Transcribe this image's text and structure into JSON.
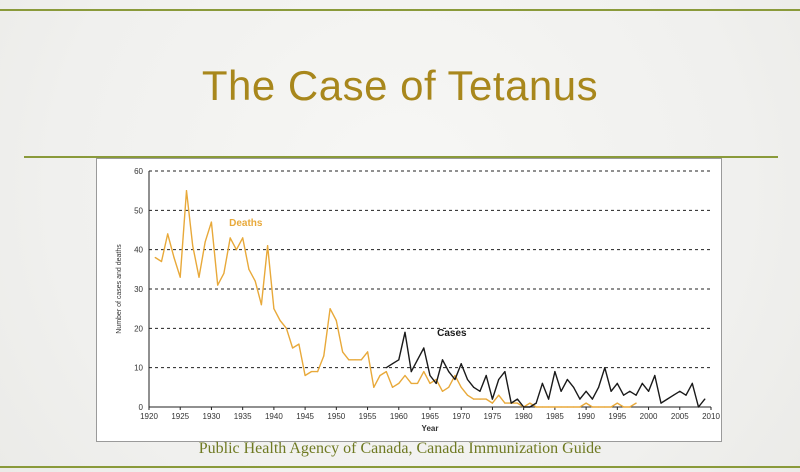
{
  "slide": {
    "title": "The Case of Tetanus",
    "caption": "Public Health Agency of Canada, Canada Immunization Guide"
  },
  "colors": {
    "deaths": "#e8a93a",
    "cases": "#1a1a1a",
    "title": "#a8871c",
    "rule": "#8a9a3a"
  },
  "chart_data": {
    "type": "line",
    "title": "",
    "xlabel": "Year",
    "ylabel": "Number of cases and deaths",
    "xlim": [
      1920,
      2010
    ],
    "ylim": [
      0,
      60
    ],
    "x_ticks": [
      1920,
      1925,
      1930,
      1935,
      1940,
      1945,
      1950,
      1955,
      1960,
      1965,
      1970,
      1975,
      1980,
      1985,
      1990,
      1995,
      2000,
      2005,
      2010
    ],
    "y_ticks": [
      0,
      10,
      20,
      30,
      40,
      50,
      60
    ],
    "grid": "horizontal-dashed",
    "series": [
      {
        "name": "Deaths",
        "color": "#e8a93a",
        "x": [
          1921,
          1922,
          1923,
          1924,
          1925,
          1926,
          1927,
          1928,
          1929,
          1930,
          1931,
          1932,
          1933,
          1934,
          1935,
          1936,
          1937,
          1938,
          1939,
          1940,
          1941,
          1942,
          1943,
          1944,
          1945,
          1946,
          1947,
          1948,
          1949,
          1950,
          1951,
          1952,
          1953,
          1954,
          1955,
          1956,
          1957,
          1958,
          1959,
          1960,
          1961,
          1962,
          1963,
          1964,
          1965,
          1966,
          1967,
          1968,
          1969,
          1970,
          1971,
          1972,
          1973,
          1974,
          1975,
          1976,
          1977,
          1978,
          1979,
          1980,
          1981,
          1982,
          1983,
          1984,
          1985,
          1986,
          1987,
          1988,
          1989,
          1990,
          1991,
          1992,
          1993,
          1994,
          1995,
          1996,
          1997,
          1998
        ],
        "values": [
          38,
          37,
          44,
          38,
          33,
          55,
          41,
          33,
          42,
          47,
          31,
          34,
          43,
          40,
          43,
          35,
          32,
          26,
          41,
          25,
          22,
          20,
          15,
          16,
          8,
          9,
          9,
          13,
          25,
          22,
          14,
          12,
          12,
          12,
          14,
          5,
          8,
          9,
          5,
          6,
          8,
          6,
          6,
          9,
          6,
          7,
          4,
          5,
          8,
          5,
          3,
          2,
          2,
          2,
          1,
          3,
          1,
          1,
          1,
          0,
          1,
          0,
          0,
          0,
          0,
          0,
          0,
          0,
          0,
          1,
          0,
          0,
          0,
          0,
          1,
          0,
          0,
          1
        ]
      },
      {
        "name": "Cases",
        "color": "#1a1a1a",
        "x": [
          1958,
          1959,
          1960,
          1961,
          1962,
          1963,
          1964,
          1965,
          1966,
          1967,
          1968,
          1969,
          1970,
          1971,
          1972,
          1973,
          1974,
          1975,
          1976,
          1977,
          1978,
          1979,
          1980,
          1981,
          1982,
          1983,
          1984,
          1985,
          1986,
          1987,
          1988,
          1989,
          1990,
          1991,
          1992,
          1993,
          1994,
          1995,
          1996,
          1997,
          1998,
          1999,
          2000,
          2001,
          2002,
          2003,
          2004,
          2005,
          2006,
          2007,
          2008,
          2009
        ],
        "values": [
          10,
          11,
          12,
          19,
          9,
          12,
          15,
          8,
          6,
          12,
          9,
          7,
          11,
          7,
          5,
          4,
          8,
          2,
          7,
          9,
          1,
          2,
          0,
          0,
          1,
          6,
          2,
          9,
          4,
          7,
          5,
          2,
          4,
          2,
          5,
          10,
          4,
          6,
          3,
          4,
          3,
          6,
          4,
          8,
          1,
          2,
          3,
          4,
          3,
          6,
          0,
          2
        ]
      }
    ],
    "annotations": [
      {
        "text": "Deaths",
        "x": 1935.5,
        "y": 46,
        "color": "#e8a93a"
      },
      {
        "text": "Cases",
        "x": 1968.5,
        "y": 18,
        "color": "#1a1a1a"
      }
    ]
  }
}
